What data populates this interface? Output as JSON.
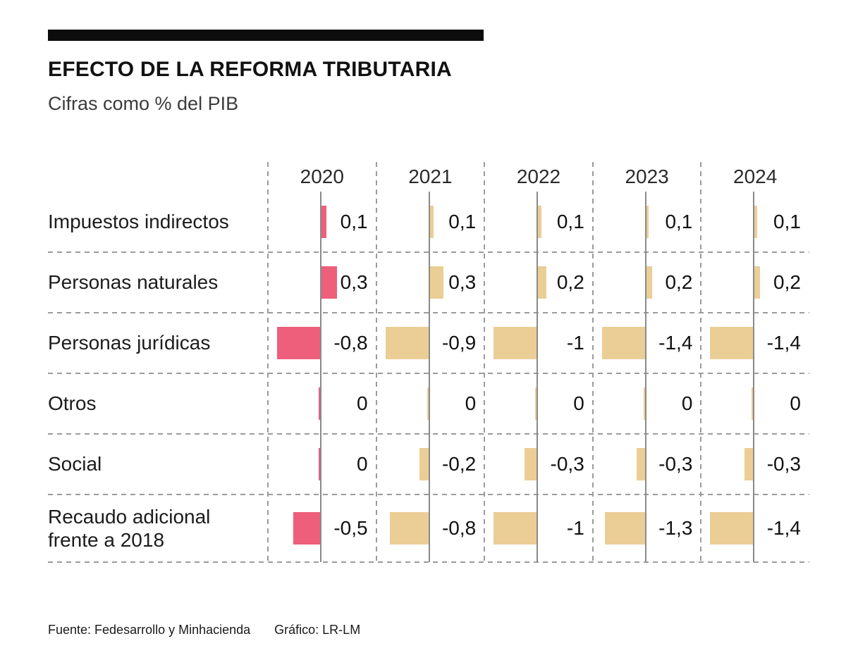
{
  "header": {
    "title": "EFECTO DE LA REFORMA TRIBUTARIA",
    "subtitle": "Cifras como % del PIB"
  },
  "chart_data": {
    "type": "bar",
    "orientation": "horizontal",
    "title": "EFECTO DE LA REFORMA TRIBUTARIA",
    "subtitle": "Cifras como % del PIB",
    "value_unit": "% del PIB",
    "columns": [
      "2020",
      "2021",
      "2022",
      "2023",
      "2024"
    ],
    "rows": [
      {
        "label": "Impuestos indirectos",
        "values": [
          0.1,
          0.1,
          0.1,
          0.1,
          0.1
        ],
        "display": [
          "0,1",
          "0,1",
          "0,1",
          "0,1",
          "0,1"
        ]
      },
      {
        "label": "Personas naturales",
        "values": [
          0.3,
          0.3,
          0.2,
          0.2,
          0.2
        ],
        "display": [
          "0,3",
          "0,3",
          "0,2",
          "0,2",
          "0,2"
        ]
      },
      {
        "label": "Personas jurídicas",
        "values": [
          -0.8,
          -0.9,
          -1,
          -1.4,
          -1.4
        ],
        "display": [
          "-0,8",
          "-0,9",
          "-1",
          "-1,4",
          "-1,4"
        ]
      },
      {
        "label": "Otros",
        "values": [
          0,
          0,
          0,
          0,
          0
        ],
        "display": [
          "0",
          "0",
          "0",
          "0",
          "0"
        ]
      },
      {
        "label": "Social",
        "values": [
          0,
          -0.2,
          -0.3,
          -0.3,
          -0.3
        ],
        "display": [
          "0",
          "-0,2",
          "-0,3",
          "-0,3",
          "-0,3"
        ]
      },
      {
        "label": "Recaudo adicional frente a 2018",
        "values": [
          -0.5,
          -0.8,
          -1,
          -1.3,
          -1.4
        ],
        "display": [
          "-0,5",
          "-0,8",
          "-1",
          "-1,3",
          "-1,4"
        ]
      }
    ],
    "colors": {
      "highlight": "#ed5f7b",
      "default": "#ebce96"
    },
    "grid": "dashed separators between rows and columns",
    "negative_direction": "left"
  },
  "footer": {
    "source": "Fuente: Fedesarrollo y Minhacienda",
    "credit": "Gráfico: LR-LM"
  }
}
